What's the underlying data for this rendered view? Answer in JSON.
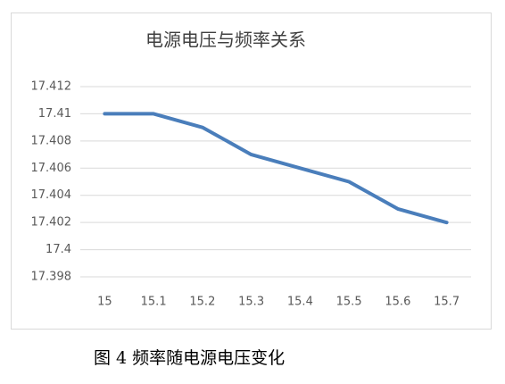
{
  "chart_data": {
    "type": "line",
    "title": "电源电压与频率关系",
    "categories": [
      "15",
      "15.1",
      "15.2",
      "15.3",
      "15.4",
      "15.5",
      "15.6",
      "15.7"
    ],
    "values": [
      17.41,
      17.41,
      17.409,
      17.407,
      17.406,
      17.405,
      17.403,
      17.402
    ],
    "color": "#4a7ebb",
    "ylim": [
      17.398,
      17.412
    ],
    "yticks": [
      17.398,
      17.4,
      17.402,
      17.404,
      17.406,
      17.408,
      17.41,
      17.412
    ],
    "grid": true
  },
  "caption": "图 4  频率随电源电压变化"
}
